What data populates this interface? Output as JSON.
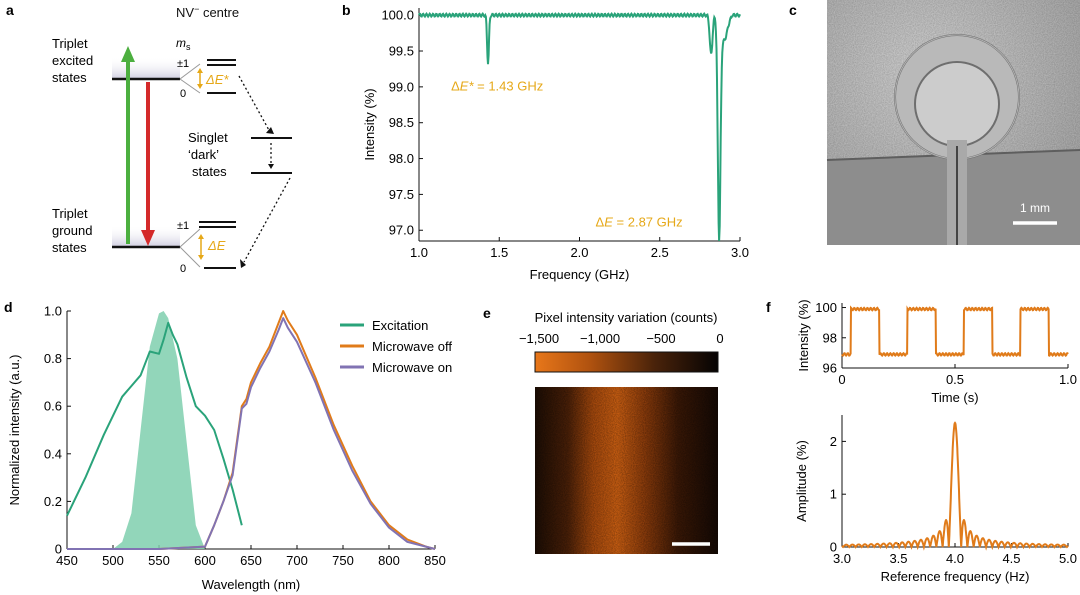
{
  "colors": {
    "teal": "#2aa37a",
    "teal_fill": "#7fcfae",
    "orange": "#e07b1a",
    "purple": "#8173b3",
    "gold": "#e6a818",
    "green_arrow": "#4caf3f",
    "red_arrow": "#d42a2a",
    "black": "#111111"
  },
  "panel_a": {
    "letter": "a",
    "title": "NV",
    "title_sup": "−",
    "title_rest": " centre",
    "ms_label": "m",
    "ms_sub": "s",
    "excited_label": [
      "Triplet",
      "excited",
      "states"
    ],
    "ground_label": [
      "Triplet",
      "ground",
      "states"
    ],
    "singlet_label": [
      "Singlet",
      "‘dark’",
      "states"
    ],
    "pm1": "±1",
    "zero": "0",
    "delta_e_star": "ΔE*",
    "delta_e": "ΔE"
  },
  "panel_b": {
    "letter": "b"
  },
  "panel_c": {
    "letter": "c",
    "scale_label": "1 mm"
  },
  "panel_d": {
    "letter": "d"
  },
  "panel_e": {
    "letter": "e",
    "title": "Pixel intensity variation (counts)",
    "colorbar_ticks": [
      "−1,500",
      "−1,000",
      "−500",
      "0"
    ]
  },
  "panel_f": {
    "letter": "f"
  },
  "chart_data": [
    {
      "id": "b",
      "type": "line",
      "title": "",
      "xlabel": "Frequency (GHz)",
      "ylabel": "Intensity (%)",
      "xlim": [
        1.0,
        3.0
      ],
      "ylim": [
        96.85,
        100.1
      ],
      "xticks": [
        1.0,
        1.5,
        2.0,
        2.5,
        3.0
      ],
      "xtick_labels": [
        "1.0",
        "1.5",
        "2.0",
        "2.5",
        "3.0"
      ],
      "yticks": [
        97.0,
        97.5,
        98.0,
        98.5,
        99.0,
        99.5,
        100.0
      ],
      "ytick_labels": [
        "97.0",
        "97.5",
        "98.0",
        "98.5",
        "99.0",
        "99.5",
        "100.0"
      ],
      "baseline": 100.0,
      "dips": [
        {
          "center": 1.43,
          "min": 99.33
        },
        {
          "center": 2.87,
          "min": 97.0
        },
        {
          "center": 2.82,
          "min": 99.45
        }
      ],
      "annotations": [
        {
          "text_main": "Δ",
          "text_it": "E*",
          "text_rest": " = 1.43 GHz",
          "at_x": 1.2,
          "at_y": 99.02
        },
        {
          "text_main": "Δ",
          "text_it": "E",
          "text_rest": " = 2.87 GHz",
          "at_x": 2.1,
          "at_y": 97.12
        }
      ]
    },
    {
      "id": "d",
      "type": "line",
      "xlabel": "Wavelength (nm)",
      "ylabel": "Normalized intensity (a.u.)",
      "xlim": [
        450,
        850
      ],
      "ylim": [
        0,
        1.0
      ],
      "xticks": [
        450,
        500,
        550,
        600,
        650,
        700,
        750,
        800,
        850
      ],
      "xtick_labels": [
        "450",
        "500",
        "550",
        "600",
        "650",
        "700",
        "750",
        "800",
        "850"
      ],
      "yticks": [
        0,
        0.2,
        0.4,
        0.6,
        0.8,
        1.0
      ],
      "ytick_labels": [
        "0",
        "0.2",
        "0.4",
        "0.6",
        "0.8",
        "1.0"
      ],
      "legend": [
        "Excitation",
        "Microwave off",
        "Microwave on"
      ],
      "filled_excitation": {
        "x": [
          500,
          510,
          520,
          530,
          540,
          550,
          555,
          560,
          570,
          580,
          590,
          600
        ],
        "y": [
          0.0,
          0.03,
          0.15,
          0.5,
          0.85,
          0.99,
          1.0,
          0.97,
          0.8,
          0.45,
          0.1,
          0.0
        ]
      },
      "series": [
        {
          "name": "Excitation",
          "x": [
            450,
            470,
            490,
            510,
            530,
            540,
            550,
            555,
            560,
            565,
            570,
            580,
            590,
            600,
            610,
            620,
            630,
            640
          ],
          "y": [
            0.14,
            0.3,
            0.48,
            0.64,
            0.73,
            0.83,
            0.82,
            0.88,
            0.95,
            0.9,
            0.86,
            0.72,
            0.6,
            0.56,
            0.5,
            0.38,
            0.25,
            0.1
          ]
        },
        {
          "name": "Microwave off",
          "x": [
            450,
            550,
            600,
            610,
            620,
            630,
            640,
            645,
            650,
            660,
            670,
            680,
            685,
            690,
            700,
            720,
            740,
            760,
            780,
            800,
            820,
            840,
            850
          ],
          "y": [
            0.0,
            0.0,
            0.01,
            0.1,
            0.2,
            0.32,
            0.6,
            0.63,
            0.7,
            0.78,
            0.85,
            0.95,
            1.0,
            0.96,
            0.9,
            0.72,
            0.52,
            0.35,
            0.2,
            0.1,
            0.04,
            0.01,
            0.0
          ]
        },
        {
          "name": "Microwave on",
          "x": [
            450,
            550,
            600,
            610,
            620,
            630,
            640,
            645,
            650,
            660,
            670,
            680,
            685,
            690,
            700,
            720,
            740,
            760,
            780,
            800,
            820,
            840,
            850
          ],
          "y": [
            0.0,
            0.0,
            0.01,
            0.1,
            0.2,
            0.31,
            0.59,
            0.61,
            0.68,
            0.76,
            0.83,
            0.92,
            0.97,
            0.93,
            0.87,
            0.7,
            0.5,
            0.33,
            0.19,
            0.09,
            0.03,
            0.01,
            0.0
          ]
        }
      ]
    },
    {
      "id": "f_top",
      "type": "line",
      "xlabel": "Time (s)",
      "ylabel": "Intensity (%)",
      "xlim": [
        0,
        1.0
      ],
      "ylim": [
        96,
        100.3
      ],
      "xticks": [
        0,
        0.5,
        1.0
      ],
      "xtick_labels": [
        "0",
        "0.5",
        "1.0"
      ],
      "yticks": [
        96,
        98,
        100
      ],
      "ytick_labels": [
        "96",
        "98",
        "100"
      ],
      "square_wave": {
        "high": 99.9,
        "low": 96.9,
        "period": 0.25,
        "high_start": 0.04,
        "high_duration": 0.125
      }
    },
    {
      "id": "f_bottom",
      "type": "line",
      "xlabel": "Reference frequency (Hz)",
      "ylabel": "Amplitude (%)",
      "xlim": [
        3.0,
        5.0
      ],
      "ylim": [
        0,
        2.5
      ],
      "xticks": [
        3.0,
        3.5,
        4.0,
        4.5,
        5.0
      ],
      "xtick_labels": [
        "3.0",
        "3.5",
        "4.0",
        "4.5",
        "5.0"
      ],
      "yticks": [
        0,
        1,
        2
      ],
      "ytick_labels": [
        "0",
        "1",
        "2"
      ],
      "peak": {
        "center": 4.0,
        "amplitude": 2.35,
        "width": 0.1
      }
    }
  ]
}
